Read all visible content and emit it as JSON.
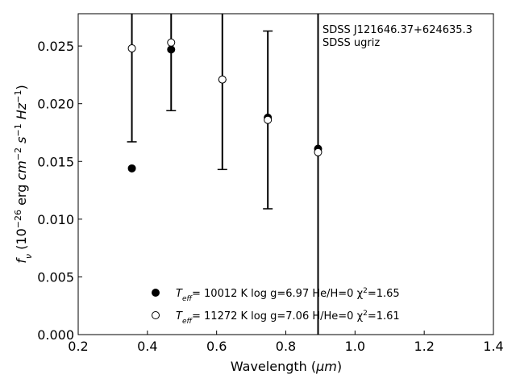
{
  "chart_data": {
    "type": "scatter",
    "xlabel": "Wavelength (",
    "xlabel_unit": "μm",
    "xlabel_end": ")",
    "ylabel_parts": [
      "f",
      "ν",
      " (10",
      "−26",
      " erg ",
      "cm",
      "−2",
      " s",
      "−1",
      " Hz",
      "−1",
      ")"
    ],
    "xlim": [
      0.2,
      1.4
    ],
    "ylim": [
      0.0,
      0.0278
    ],
    "xticks": [
      "0.2",
      "0.4",
      "0.6",
      "0.8",
      "1.0",
      "1.2",
      "1.4"
    ],
    "yticks": [
      "0.000",
      "0.005",
      "0.010",
      "0.015",
      "0.020",
      "0.025"
    ],
    "annotation": [
      "SDSS J121646.37+624635.3",
      "SDSS ugriz"
    ],
    "observed": {
      "x": [
        0.3551,
        0.4686,
        0.6166,
        0.748,
        0.8932
      ],
      "y": [
        0.0248,
        0.0253,
        0.0221,
        0.0186,
        0.0158
      ],
      "yerr": [
        0.0081,
        0.0059,
        0.0078,
        0.0077,
        0.021
      ]
    },
    "series": [
      {
        "name_parts": [
          "T",
          "eff",
          "= 10012 K  log g=6.97  He/H=0  χ",
          "2",
          "=1.65"
        ],
        "marker": "filled-circle",
        "x": [
          0.3551,
          0.4686,
          0.6166,
          0.748,
          0.8932
        ],
        "y": [
          0.0144,
          0.0247,
          0.0221,
          0.0188,
          0.0161
        ]
      },
      {
        "name_parts": [
          "T",
          "eff",
          "= 11272 K  log g=7.06  H/He=0  χ",
          "2",
          "=1.61"
        ],
        "marker": "open-circle",
        "x": [
          0.3551,
          0.4686,
          0.6166,
          0.748,
          0.8932
        ],
        "y": [
          0.0248,
          0.0253,
          0.0221,
          0.0186,
          0.0158
        ]
      }
    ],
    "legend_position": "lower-center",
    "grid": false
  }
}
